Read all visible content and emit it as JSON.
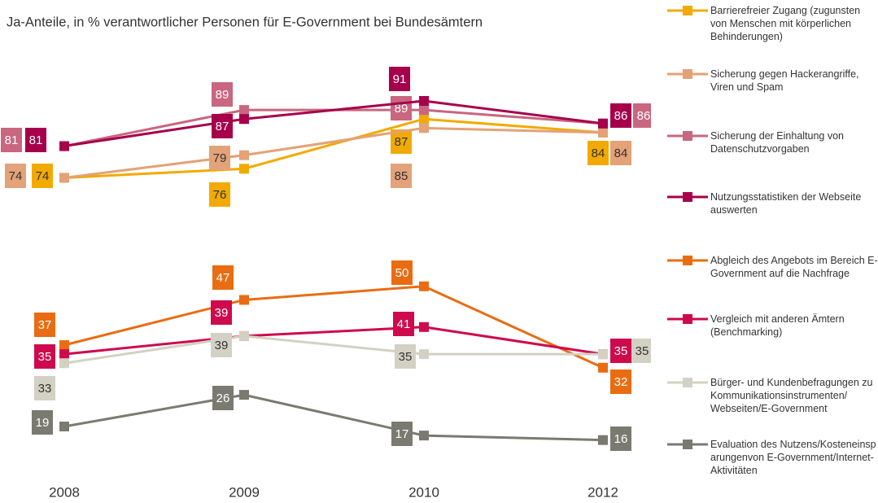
{
  "chart_data": {
    "type": "line",
    "title": "Ja-Anteile, in % verantwortlicher Personen für E-Government bei Bundesämtern",
    "categories": [
      "2008",
      "2009",
      "2010",
      "2012"
    ],
    "ylim": [
      10,
      100
    ],
    "legend": "right",
    "series": [
      {
        "name": "Barrierefreier Zugang (zugunsten von Menschen mit körperlichen Behinderungen)",
        "color": "#f2aa00",
        "values": [
          74,
          76,
          87,
          84
        ]
      },
      {
        "name": "Sicherung gegen Hackerangriffe, Viren und Spam",
        "color": "#e3a277",
        "values": [
          74,
          79,
          85,
          84
        ]
      },
      {
        "name": "Sicherung der Einhaltung von Datenschutzvorgaben",
        "color": "#c96680",
        "values": [
          81,
          89,
          89,
          86
        ]
      },
      {
        "name": "Nutzungsstatistiken der Webseite auswerten",
        "color": "#a6004b",
        "values": [
          81,
          87,
          91,
          86
        ]
      },
      {
        "name": "Abgleich des Angebots im Bereich E-Government auf die Nachfrage",
        "color": "#e96c12",
        "values": [
          37,
          47,
          50,
          32
        ]
      },
      {
        "name": "Vergleich mit anderen Ämtern (Benchmarking)",
        "color": "#cf0a4c",
        "values": [
          35,
          39,
          41,
          35
        ]
      },
      {
        "name": "Bürger- und Kundenbefragungen  zu Kommunikationsinstrumenten/ Webseiten/E-Government",
        "color": "#d3d1c3",
        "values": [
          33,
          39,
          35,
          35
        ]
      },
      {
        "name": "Evaluation des Nutzens/Kosteneinsparungenvon E-Government/Internet-Aktivitäten",
        "color": "#7b7a70",
        "values": [
          19,
          26,
          17,
          16
        ]
      }
    ]
  }
}
